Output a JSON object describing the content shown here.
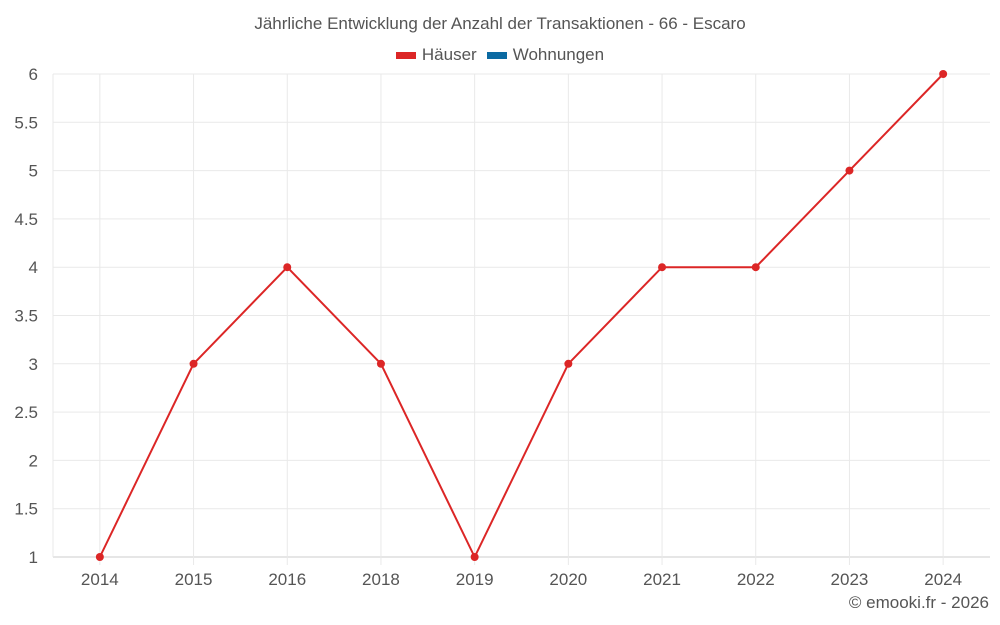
{
  "chart_data": {
    "type": "line",
    "title": "Jährliche Entwicklung der Anzahl der Transaktionen - 66 - Escaro",
    "categories": [
      "2014",
      "2015",
      "2016",
      "2018",
      "2019",
      "2020",
      "2021",
      "2022",
      "2023",
      "2024"
    ],
    "series": [
      {
        "name": "Häuser",
        "color": "#dc2626",
        "values": [
          1,
          3,
          4,
          3,
          1,
          3,
          4,
          4,
          5,
          6
        ]
      },
      {
        "name": "Wohnungen",
        "color": "#0b6aa2",
        "values": []
      }
    ],
    "xlabel": "",
    "ylabel": "",
    "ylim": [
      1,
      6
    ],
    "yticks": [
      "1",
      "1.5",
      "2",
      "2.5",
      "3",
      "3.5",
      "4",
      "4.5",
      "5",
      "5.5",
      "6"
    ],
    "grid": true,
    "legend_position": "top"
  },
  "header": {
    "title": "Jährliche Entwicklung der Anzahl der Transaktionen - 66 - Escaro"
  },
  "legend": {
    "items": [
      {
        "label": "Häuser",
        "color": "#dc2626"
      },
      {
        "label": "Wohnungen",
        "color": "#0b6aa2"
      }
    ]
  },
  "footer": {
    "credit": "© emooki.fr - 2026"
  }
}
